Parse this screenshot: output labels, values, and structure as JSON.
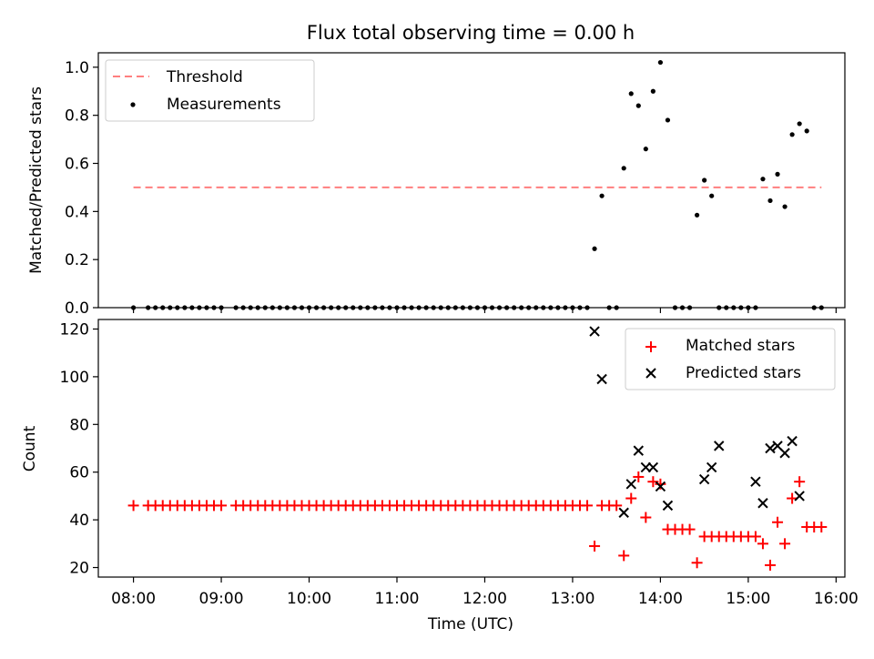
{
  "title": "Flux total observing time = 0.00 h",
  "chart_data": [
    {
      "type": "scatter",
      "ylabel": "Matched/Predicted stars",
      "xlim": [
        "07:36",
        "16:06"
      ],
      "ylim": [
        0,
        1.06
      ],
      "yticks": [
        0.0,
        0.2,
        0.4,
        0.6,
        0.8,
        1.0
      ],
      "ytick_labels": [
        "0.0",
        "0.2",
        "0.4",
        "0.6",
        "0.8",
        "1.0"
      ],
      "legend_position": "top-left",
      "threshold": {
        "name": "Threshold",
        "value": 0.5,
        "x_start": "08:00",
        "x_end": "15:50",
        "color": "#ff7f7f",
        "linestyle": "dashed"
      },
      "series": [
        {
          "name": "Measurements",
          "color": "#000000",
          "marker": "dot",
          "x": [
            "08:00",
            "08:10",
            "08:15",
            "08:20",
            "08:25",
            "08:30",
            "08:35",
            "08:40",
            "08:45",
            "08:50",
            "08:55",
            "09:00",
            "09:10",
            "09:15",
            "09:20",
            "09:25",
            "09:30",
            "09:35",
            "09:40",
            "09:45",
            "09:50",
            "09:55",
            "10:00",
            "10:05",
            "10:10",
            "10:15",
            "10:20",
            "10:25",
            "10:30",
            "10:35",
            "10:40",
            "10:45",
            "10:50",
            "10:55",
            "11:00",
            "11:05",
            "11:10",
            "11:15",
            "11:20",
            "11:25",
            "11:30",
            "11:35",
            "11:40",
            "11:45",
            "11:50",
            "11:55",
            "12:00",
            "12:05",
            "12:10",
            "12:15",
            "12:20",
            "12:25",
            "12:30",
            "12:35",
            "12:40",
            "12:45",
            "12:50",
            "12:55",
            "13:00",
            "13:05",
            "13:10",
            "13:15",
            "13:20",
            "13:25",
            "13:30",
            "13:35",
            "13:40",
            "13:45",
            "13:50",
            "13:55",
            "14:00",
            "14:05",
            "14:10",
            "14:15",
            "14:20",
            "14:25",
            "14:30",
            "14:35",
            "14:40",
            "14:45",
            "14:50",
            "14:55",
            "15:00",
            "15:05",
            "15:10",
            "15:15",
            "15:20",
            "15:25",
            "15:30",
            "15:35",
            "15:40",
            "15:45",
            "15:50"
          ],
          "y": [
            0,
            0,
            0,
            0,
            0,
            0,
            0,
            0,
            0,
            0,
            0,
            0,
            0,
            0,
            0,
            0,
            0,
            0,
            0,
            0,
            0,
            0,
            0,
            0,
            0,
            0,
            0,
            0,
            0,
            0,
            0,
            0,
            0,
            0,
            0,
            0,
            0,
            0,
            0,
            0,
            0,
            0,
            0,
            0,
            0,
            0,
            0,
            0,
            0,
            0,
            0,
            0,
            0,
            0,
            0,
            0,
            0,
            0,
            0,
            0,
            0,
            0.245,
            0.465,
            0,
            0,
            0.58,
            0.89,
            0.84,
            0.66,
            0.9,
            1.02,
            0.78,
            0,
            0,
            0,
            0.385,
            0.53,
            0.465,
            0,
            0,
            0,
            0,
            0,
            0,
            0.535,
            0.445,
            0.555,
            0.42,
            0.72,
            0.765,
            0.735,
            0,
            0
          ]
        }
      ]
    },
    {
      "type": "scatter",
      "xlabel": "Time (UTC)",
      "ylabel": "Count",
      "xlim": [
        "07:36",
        "16:06"
      ],
      "ylim": [
        16,
        124
      ],
      "xticks": [
        "08:00",
        "09:00",
        "10:00",
        "11:00",
        "12:00",
        "13:00",
        "14:00",
        "15:00",
        "16:00"
      ],
      "yticks": [
        20,
        40,
        60,
        80,
        100,
        120
      ],
      "ytick_labels": [
        "20",
        "40",
        "60",
        "80",
        "100",
        "120"
      ],
      "legend_position": "top-right",
      "series": [
        {
          "name": "Matched stars",
          "color": "#ff0000",
          "marker": "plus",
          "x": [
            "08:00",
            "08:10",
            "08:15",
            "08:20",
            "08:25",
            "08:30",
            "08:35",
            "08:40",
            "08:45",
            "08:50",
            "08:55",
            "09:00",
            "09:10",
            "09:15",
            "09:20",
            "09:25",
            "09:30",
            "09:35",
            "09:40",
            "09:45",
            "09:50",
            "09:55",
            "10:00",
            "10:05",
            "10:10",
            "10:15",
            "10:20",
            "10:25",
            "10:30",
            "10:35",
            "10:40",
            "10:45",
            "10:50",
            "10:55",
            "11:00",
            "11:05",
            "11:10",
            "11:15",
            "11:20",
            "11:25",
            "11:30",
            "11:35",
            "11:40",
            "11:45",
            "11:50",
            "11:55",
            "12:00",
            "12:05",
            "12:10",
            "12:15",
            "12:20",
            "12:25",
            "12:30",
            "12:35",
            "12:40",
            "12:45",
            "12:50",
            "12:55",
            "13:00",
            "13:05",
            "13:10",
            "13:15",
            "13:20",
            "13:25",
            "13:30",
            "13:35",
            "13:40",
            "13:45",
            "13:50",
            "13:55",
            "14:00",
            "14:05",
            "14:10",
            "14:15",
            "14:20",
            "14:25",
            "14:30",
            "14:35",
            "14:40",
            "14:45",
            "14:50",
            "14:55",
            "15:00",
            "15:05",
            "15:10",
            "15:15",
            "15:20",
            "15:25",
            "15:30",
            "15:35",
            "15:40",
            "15:45",
            "15:50"
          ],
          "y": [
            46,
            46,
            46,
            46,
            46,
            46,
            46,
            46,
            46,
            46,
            46,
            46,
            46,
            46,
            46,
            46,
            46,
            46,
            46,
            46,
            46,
            46,
            46,
            46,
            46,
            46,
            46,
            46,
            46,
            46,
            46,
            46,
            46,
            46,
            46,
            46,
            46,
            46,
            46,
            46,
            46,
            46,
            46,
            46,
            46,
            46,
            46,
            46,
            46,
            46,
            46,
            46,
            46,
            46,
            46,
            46,
            46,
            46,
            46,
            46,
            46,
            29,
            46,
            46,
            46,
            25,
            49,
            58,
            41,
            56,
            55,
            36,
            36,
            36,
            36,
            22,
            33,
            33,
            33,
            33,
            33,
            33,
            33,
            33,
            30,
            21,
            39,
            30,
            49,
            56,
            37,
            37,
            37
          ]
        },
        {
          "name": "Predicted stars",
          "color": "#000000",
          "marker": "x",
          "x": [
            "13:15",
            "13:20",
            "13:35",
            "13:40",
            "13:45",
            "13:50",
            "13:55",
            "14:00",
            "14:05",
            "14:30",
            "14:35",
            "14:40",
            "15:05",
            "15:10",
            "15:15",
            "15:20",
            "15:25",
            "15:30",
            "15:35"
          ],
          "y": [
            119,
            99,
            43,
            55,
            69,
            62,
            62,
            54,
            46,
            57,
            62,
            71,
            56,
            47,
            70,
            71,
            68,
            73,
            50
          ]
        }
      ]
    }
  ]
}
